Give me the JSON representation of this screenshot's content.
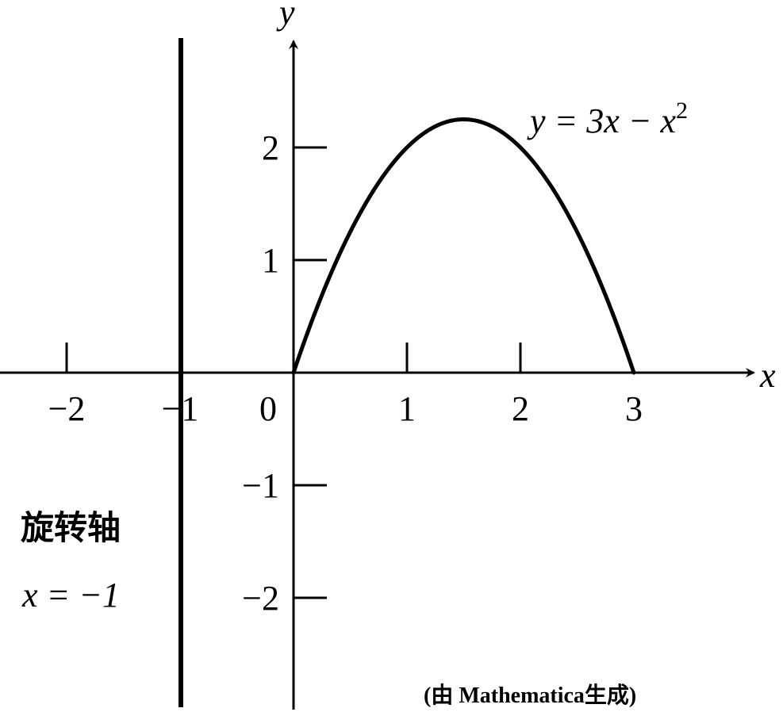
{
  "chart_data": {
    "type": "line",
    "xlabel": "x",
    "ylabel": "y",
    "xlim": [
      -2.5,
      4
    ],
    "ylim": [
      -3,
      3.1
    ],
    "x_ticks": [
      -2,
      -1,
      0,
      1,
      2,
      3
    ],
    "x_tick_labels": [
      "−2",
      "−1",
      "0",
      "1",
      "2",
      "3"
    ],
    "y_ticks": [
      -2,
      -1,
      1,
      2
    ],
    "y_tick_labels": [
      "−2",
      "−1",
      "1",
      "2"
    ],
    "grid": false,
    "series": [
      {
        "name": "y = 3x − x²",
        "color": "#000000",
        "x": [
          0,
          0.25,
          0.5,
          0.75,
          1,
          1.25,
          1.5,
          1.75,
          2,
          2.25,
          2.5,
          2.75,
          3
        ],
        "y": [
          0,
          0.6875,
          1.25,
          1.6875,
          2,
          2.1875,
          2.25,
          2.1875,
          2,
          1.6875,
          1.25,
          0.6875,
          0
        ]
      }
    ],
    "vertical_lines": [
      {
        "x": -1,
        "label_line1": "旋转轴",
        "label_line2": "x = −1"
      }
    ],
    "annotations": {
      "curve_label_prefix": "y = 3x − x",
      "curve_label_sup": "2",
      "axis_line_label_cn": "旋转轴",
      "axis_line_label_eq": "x = −1",
      "credit": "(由 Mathematica生成)"
    }
  }
}
